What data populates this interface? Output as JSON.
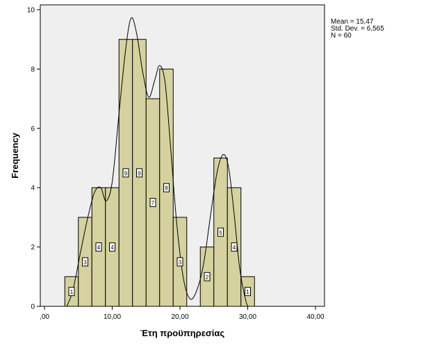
{
  "chart_data": {
    "type": "histogram",
    "title": "",
    "xlabel": "Έτη προϋπηρεσίας",
    "ylabel": "Frequency",
    "xlim": [
      0,
      40
    ],
    "ylim": [
      0,
      10
    ],
    "x_ticks": [
      0,
      10,
      20,
      30,
      40
    ],
    "x_tick_labels": [
      ",00",
      "10,00",
      "20,00",
      "30,00",
      "40,00"
    ],
    "y_ticks": [
      0,
      2,
      4,
      6,
      8,
      10
    ],
    "y_tick_labels": [
      "0",
      "2",
      "4",
      "6",
      "8",
      "10"
    ],
    "bin_width": 2,
    "bars": [
      {
        "start": 3,
        "end": 5,
        "count": 1,
        "label": "1",
        "label_y": 0.5
      },
      {
        "start": 5,
        "end": 7,
        "count": 3,
        "label": "3",
        "label_y": 1.5
      },
      {
        "start": 7,
        "end": 9,
        "count": 4,
        "label": "4",
        "label_y": 2
      },
      {
        "start": 9,
        "end": 11,
        "count": 4,
        "label": "4",
        "label_y": 2
      },
      {
        "start": 11,
        "end": 13,
        "count": 9,
        "label": "9",
        "label_y": 4.5
      },
      {
        "start": 13,
        "end": 15,
        "count": 9,
        "label": "9",
        "label_y": 4.5
      },
      {
        "start": 15,
        "end": 17,
        "count": 7,
        "label": "7",
        "label_y": 3.5
      },
      {
        "start": 17,
        "end": 19,
        "count": 8,
        "label": "8",
        "label_y": 4
      },
      {
        "start": 19,
        "end": 21,
        "count": 3,
        "label": "3",
        "label_y": 1.5
      },
      {
        "start": 21,
        "end": 23,
        "count": 0,
        "label": "",
        "label_y": 0
      },
      {
        "start": 23,
        "end": 25,
        "count": 2,
        "label": "2",
        "label_y": 1
      },
      {
        "start": 25,
        "end": 27,
        "count": 5,
        "label": "5",
        "label_y": 2.5
      },
      {
        "start": 27,
        "end": 29,
        "count": 4,
        "label": "4",
        "label_y": 2
      },
      {
        "start": 29,
        "end": 31,
        "count": 1,
        "label": "1",
        "label_y": 0.5
      }
    ],
    "curve": {
      "type": "smooth-density",
      "points": [
        [
          3.3,
          0.0
        ],
        [
          4.2,
          0.55
        ],
        [
          5.3,
          1.8
        ],
        [
          6.4,
          3.0
        ],
        [
          7.4,
          3.85
        ],
        [
          8.3,
          4.0
        ],
        [
          9.1,
          3.55
        ],
        [
          10.0,
          4.2
        ],
        [
          11.0,
          6.5
        ],
        [
          12.0,
          8.7
        ],
        [
          12.8,
          9.72
        ],
        [
          13.6,
          9.2
        ],
        [
          14.5,
          7.9
        ],
        [
          15.4,
          7.05
        ],
        [
          16.3,
          7.65
        ],
        [
          17.0,
          8.12
        ],
        [
          17.8,
          7.55
        ],
        [
          18.6,
          5.4
        ],
        [
          19.5,
          2.85
        ],
        [
          20.5,
          0.95
        ],
        [
          21.5,
          0.25
        ],
        [
          22.5,
          0.55
        ],
        [
          23.5,
          1.45
        ],
        [
          24.5,
          3.05
        ],
        [
          25.5,
          4.55
        ],
        [
          26.4,
          5.12
        ],
        [
          27.2,
          4.65
        ],
        [
          28.0,
          3.1
        ],
        [
          28.8,
          1.3
        ],
        [
          29.6,
          0.3
        ],
        [
          30.0,
          0.0
        ]
      ]
    },
    "stats": {
      "mean": "Mean = 15,47",
      "std_dev": "Std. Dev. = 6,565",
      "n": "N = 60"
    },
    "legend_position": "top-right",
    "grid": false
  },
  "colors": {
    "plot_background": "#efefef",
    "bar_fill": "#d5d29f",
    "bar_stroke": "#000000",
    "axis": "#000000",
    "curve": "#000000",
    "label_fill": "#ffffff",
    "label_stroke": "#000000"
  }
}
